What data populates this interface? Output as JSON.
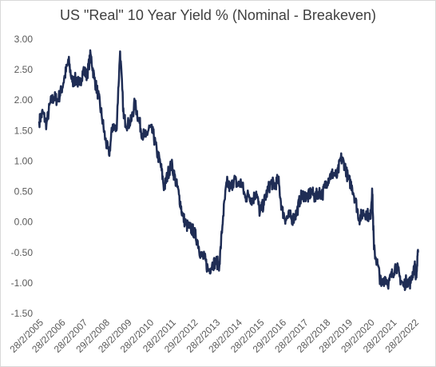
{
  "chart_data": {
    "type": "line",
    "title": "US \"Real\" 10 Year Yield % (Nominal - Breakeven)",
    "xlabel": "",
    "ylabel": "",
    "ylim": [
      -1.5,
      3.0
    ],
    "y_ticks": [
      "3.00",
      "2.50",
      "2.00",
      "1.50",
      "1.00",
      "0.50",
      "0.00",
      "-0.50",
      "-1.00",
      "-1.50"
    ],
    "y_tick_values": [
      3.0,
      2.5,
      2.0,
      1.5,
      1.0,
      0.5,
      0.0,
      -0.5,
      -1.0,
      -1.5
    ],
    "x_ticks": [
      "28/2/2005",
      "28/2/2006",
      "28/2/2007",
      "29/2/2008",
      "28/2/2009",
      "28/2/2010",
      "28/2/2011",
      "29/2/2012",
      "28/2/2013",
      "28/2/2014",
      "28/2/2015",
      "29/2/2016",
      "28/2/2017",
      "28/2/2018",
      "28/2/2019",
      "29/2/2020",
      "28/2/2021",
      "28/2/2022"
    ],
    "grid": false,
    "legend": "none",
    "series_color": "#1f2d55",
    "series": [
      {
        "x": [
          "2005-02",
          "2005-04",
          "2005-06",
          "2005-08",
          "2005-10",
          "2005-12",
          "2006-02",
          "2006-04",
          "2006-06",
          "2006-08",
          "2006-10",
          "2006-12",
          "2007-02",
          "2007-04",
          "2007-06",
          "2007-08",
          "2007-10",
          "2007-12",
          "2008-02",
          "2008-04",
          "2008-06",
          "2008-08",
          "2008-10",
          "2008-12",
          "2009-02",
          "2009-04",
          "2009-06",
          "2009-08",
          "2009-10",
          "2009-12",
          "2010-02",
          "2010-04",
          "2010-06",
          "2010-08",
          "2010-10",
          "2010-12",
          "2011-02",
          "2011-04",
          "2011-06",
          "2011-08",
          "2011-10",
          "2011-12",
          "2012-02",
          "2012-04",
          "2012-06",
          "2012-08",
          "2012-10",
          "2012-12",
          "2013-02",
          "2013-04",
          "2013-06",
          "2013-08",
          "2013-10",
          "2013-12",
          "2014-02",
          "2014-04",
          "2014-06",
          "2014-08",
          "2014-10",
          "2014-12",
          "2015-02",
          "2015-04",
          "2015-06",
          "2015-08",
          "2015-10",
          "2015-12",
          "2016-02",
          "2016-04",
          "2016-06",
          "2016-08",
          "2016-10",
          "2016-12",
          "2017-02",
          "2017-04",
          "2017-06",
          "2017-08",
          "2017-10",
          "2017-12",
          "2018-02",
          "2018-04",
          "2018-06",
          "2018-08",
          "2018-10",
          "2018-12",
          "2019-02",
          "2019-04",
          "2019-06",
          "2019-08",
          "2019-10",
          "2019-12",
          "2020-02",
          "2020-03",
          "2020-04",
          "2020-06",
          "2020-08",
          "2020-10",
          "2020-12",
          "2021-02",
          "2021-04",
          "2021-06",
          "2021-08",
          "2021-10",
          "2021-12",
          "2022-02",
          "2022-03",
          "2022-04"
        ],
        "values": [
          1.65,
          1.8,
          1.6,
          1.95,
          2.05,
          2.0,
          2.15,
          2.4,
          2.65,
          2.3,
          2.35,
          2.25,
          2.5,
          2.4,
          2.75,
          2.35,
          2.1,
          1.75,
          1.35,
          1.1,
          1.6,
          1.5,
          2.8,
          1.7,
          1.6,
          1.65,
          1.95,
          1.7,
          1.45,
          1.4,
          1.55,
          1.45,
          1.15,
          0.95,
          0.55,
          0.8,
          0.95,
          0.7,
          0.45,
          0.1,
          -0.05,
          -0.1,
          -0.15,
          -0.3,
          -0.55,
          -0.6,
          -0.8,
          -0.7,
          -0.65,
          -0.7,
          0.1,
          0.65,
          0.55,
          0.7,
          0.6,
          0.65,
          0.4,
          0.45,
          0.35,
          0.5,
          0.15,
          0.3,
          0.5,
          0.65,
          0.6,
          0.7,
          0.2,
          0.05,
          0.1,
          0.05,
          0.15,
          0.4,
          0.45,
          0.4,
          0.5,
          0.4,
          0.5,
          0.45,
          0.65,
          0.75,
          0.8,
          0.75,
          1.05,
          0.95,
          0.7,
          0.6,
          0.35,
          0.05,
          0.15,
          0.15,
          0.05,
          0.55,
          -0.45,
          -0.7,
          -1.05,
          -0.9,
          -1.0,
          -0.85,
          -0.7,
          -0.9,
          -1.05,
          -0.95,
          -1.0,
          -0.7,
          -0.9,
          -0.5
        ]
      }
    ]
  }
}
